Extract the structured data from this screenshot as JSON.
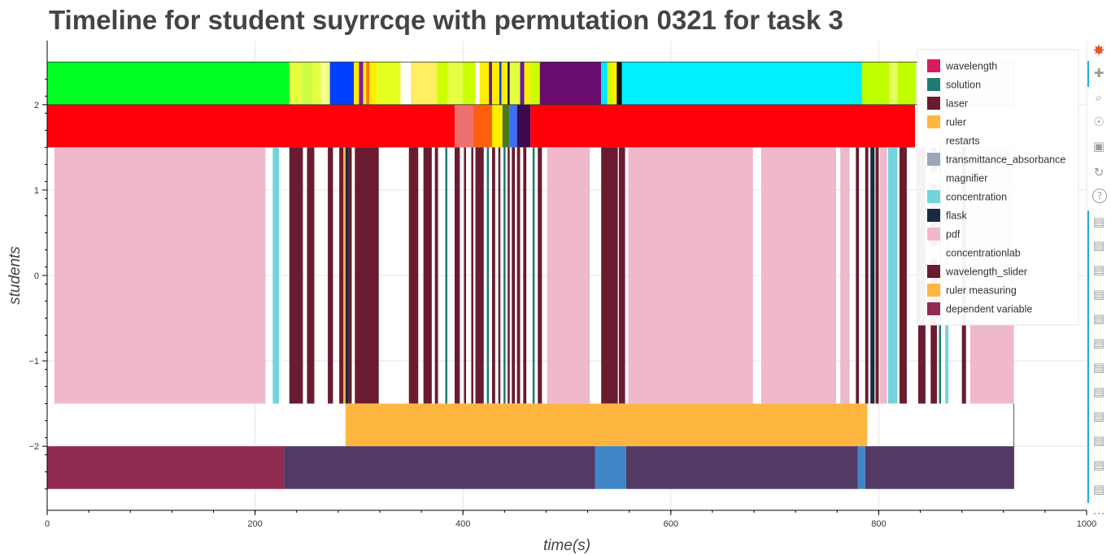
{
  "chart_data": {
    "type": "timeline",
    "title": "Timeline for student suyrrcqe with permutation 0321 for task 3",
    "xlabel": "time(s)",
    "ylabel": "students",
    "xlim": [
      0,
      1000
    ],
    "ylim": [
      -2.75,
      2.75
    ],
    "xticks": [
      0,
      200,
      400,
      600,
      800,
      1000
    ],
    "yticks": [
      -2,
      -1,
      0,
      1,
      2
    ],
    "grid": true,
    "legend_position": "top-right",
    "legend": [
      {
        "name": "wavelength",
        "color": "#d81b60"
      },
      {
        "name": "solution",
        "color": "#1f7a74"
      },
      {
        "name": "laser",
        "color": "#6a1b2f"
      },
      {
        "name": "ruler",
        "color": "#ffb641"
      },
      {
        "name": "restarts",
        "color": "#ffffff"
      },
      {
        "name": "transmittance_absorbance",
        "color": "#9aa6b8"
      },
      {
        "name": "magnifier",
        "color": "#ffffff"
      },
      {
        "name": "concentration",
        "color": "#72d4dc"
      },
      {
        "name": "flask",
        "color": "#1a2a40"
      },
      {
        "name": "pdf",
        "color": "#efb8cb"
      },
      {
        "name": "concentrationlab",
        "color": "#ffffff"
      },
      {
        "name": "wavelength_slider",
        "color": "#6a1b2f"
      },
      {
        "name": "ruler measuring",
        "color": "#ffb641"
      },
      {
        "name": "dependent variable",
        "color": "#922b52"
      }
    ],
    "rows": [
      {
        "y0": 2.0,
        "y1": 2.5,
        "segments": [
          {
            "x0": 0,
            "x1": 233,
            "color": "#00ff20"
          },
          {
            "x0": 233,
            "x1": 245,
            "color": "#e4ff40"
          },
          {
            "x0": 245,
            "x1": 255,
            "color": "#ccff44"
          },
          {
            "x0": 255,
            "x1": 263,
            "color": "#e4ff40"
          },
          {
            "x0": 263,
            "x1": 272,
            "color": "#f4ff88"
          },
          {
            "x0": 272,
            "x1": 295,
            "color": "#0040ff"
          },
          {
            "x0": 295,
            "x1": 300,
            "color": "#ffee00"
          },
          {
            "x0": 300,
            "x1": 304,
            "color": "#7b1fa2"
          },
          {
            "x0": 304,
            "x1": 307,
            "color": "#ffee00"
          },
          {
            "x0": 307,
            "x1": 310,
            "color": "#ff7700"
          },
          {
            "x0": 310,
            "x1": 317,
            "color": "#ffee00"
          },
          {
            "x0": 317,
            "x1": 340,
            "color": "#e4ff20"
          },
          {
            "x0": 340,
            "x1": 350,
            "color": "#ffffff"
          },
          {
            "x0": 350,
            "x1": 375,
            "color": "#ffee60"
          },
          {
            "x0": 375,
            "x1": 385,
            "color": "#ccff00"
          },
          {
            "x0": 385,
            "x1": 400,
            "color": "#e4ff40"
          },
          {
            "x0": 400,
            "x1": 412,
            "color": "#ccff00"
          },
          {
            "x0": 412,
            "x1": 416,
            "color": "#ffffff"
          },
          {
            "x0": 416,
            "x1": 425,
            "color": "#ffee00"
          },
          {
            "x0": 425,
            "x1": 428,
            "color": "#6a1b9a"
          },
          {
            "x0": 428,
            "x1": 435,
            "color": "#ffee00"
          },
          {
            "x0": 435,
            "x1": 437,
            "color": "#0040ff"
          },
          {
            "x0": 437,
            "x1": 443,
            "color": "#ffee00"
          },
          {
            "x0": 443,
            "x1": 445,
            "color": "#111111"
          },
          {
            "x0": 445,
            "x1": 455,
            "color": "#e4ff40"
          },
          {
            "x0": 455,
            "x1": 459,
            "color": "#6a1b9a"
          },
          {
            "x0": 459,
            "x1": 465,
            "color": "#ffee00"
          },
          {
            "x0": 465,
            "x1": 474,
            "color": "#ccff00"
          },
          {
            "x0": 474,
            "x1": 533,
            "color": "#6a0d6e"
          },
          {
            "x0": 533,
            "x1": 539,
            "color": "#00e5ff"
          },
          {
            "x0": 539,
            "x1": 543,
            "color": "#ccff00"
          },
          {
            "x0": 543,
            "x1": 548,
            "color": "#ffee00"
          },
          {
            "x0": 548,
            "x1": 553,
            "color": "#111111"
          },
          {
            "x0": 553,
            "x1": 784,
            "color": "#00f0ff"
          },
          {
            "x0": 784,
            "x1": 810,
            "color": "#c0ff00"
          },
          {
            "x0": 810,
            "x1": 818,
            "color": "#e4ff60"
          },
          {
            "x0": 818,
            "x1": 836,
            "color": "#c0ff00"
          },
          {
            "x0": 836,
            "x1": 930,
            "color": "#f4ecff"
          }
        ]
      },
      {
        "y0": 1.5,
        "y1": 2.0,
        "segments": [
          {
            "x0": 0,
            "x1": 392,
            "color": "#ff0008"
          },
          {
            "x0": 392,
            "x1": 410,
            "color": "#f07070"
          },
          {
            "x0": 410,
            "x1": 428,
            "color": "#ff6010"
          },
          {
            "x0": 428,
            "x1": 438,
            "color": "#ffee00"
          },
          {
            "x0": 438,
            "x1": 445,
            "color": "#4a7a20"
          },
          {
            "x0": 445,
            "x1": 452,
            "color": "#3b6fff"
          },
          {
            "x0": 452,
            "x1": 465,
            "color": "#3b0a50"
          },
          {
            "x0": 465,
            "x1": 835,
            "color": "#ff0008"
          },
          {
            "x0": 835,
            "x1": 930,
            "color": "#fffff2"
          }
        ]
      },
      {
        "y0": -1.5,
        "y1": 1.5,
        "segments": [
          {
            "x0": 7,
            "x1": 210,
            "color": "#efb8cb"
          },
          {
            "x0": 217,
            "x1": 223,
            "color": "#72d4dc"
          },
          {
            "x0": 233,
            "x1": 246,
            "color": "#6a1b2f"
          },
          {
            "x0": 250,
            "x1": 257,
            "color": "#6a1b2f"
          },
          {
            "x0": 270,
            "x1": 275,
            "color": "#6a1b2f"
          },
          {
            "x0": 281,
            "x1": 285,
            "color": "#6a1b2f"
          },
          {
            "x0": 285,
            "x1": 287,
            "color": "#ffb641"
          },
          {
            "x0": 287,
            "x1": 290,
            "color": "#1a2a40"
          },
          {
            "x0": 290,
            "x1": 293,
            "color": "#6a1b2f"
          },
          {
            "x0": 296,
            "x1": 319,
            "color": "#6a1b2f"
          },
          {
            "x0": 348,
            "x1": 357,
            "color": "#6a1b2f"
          },
          {
            "x0": 362,
            "x1": 370,
            "color": "#6a1b2f"
          },
          {
            "x0": 373,
            "x1": 376,
            "color": "#6a1b2f"
          },
          {
            "x0": 383,
            "x1": 385,
            "color": "#1f7a74"
          },
          {
            "x0": 392,
            "x1": 397,
            "color": "#6a1b2f"
          },
          {
            "x0": 401,
            "x1": 403,
            "color": "#6a1b2f"
          },
          {
            "x0": 408,
            "x1": 410,
            "color": "#6a1b2f"
          },
          {
            "x0": 412,
            "x1": 420,
            "color": "#6a1b2f"
          },
          {
            "x0": 423,
            "x1": 425,
            "color": "#1f7a74"
          },
          {
            "x0": 428,
            "x1": 431,
            "color": "#6a1b2f"
          },
          {
            "x0": 434,
            "x1": 436,
            "color": "#6a1b2f"
          },
          {
            "x0": 439,
            "x1": 441,
            "color": "#1f7a74"
          },
          {
            "x0": 443,
            "x1": 445,
            "color": "#6a1b2f"
          },
          {
            "x0": 447,
            "x1": 450,
            "color": "#6a1b2f"
          },
          {
            "x0": 452,
            "x1": 455,
            "color": "#6a1b2f"
          },
          {
            "x0": 458,
            "x1": 461,
            "color": "#6a1b2f"
          },
          {
            "x0": 467,
            "x1": 469,
            "color": "#1f7a74"
          },
          {
            "x0": 472,
            "x1": 476,
            "color": "#6a1b2f"
          },
          {
            "x0": 481,
            "x1": 522,
            "color": "#efb8cb"
          },
          {
            "x0": 533,
            "x1": 549,
            "color": "#6a1b2f"
          },
          {
            "x0": 550,
            "x1": 556,
            "color": "#6a1b2f"
          },
          {
            "x0": 559,
            "x1": 679,
            "color": "#efb8cb"
          },
          {
            "x0": 687,
            "x1": 759,
            "color": "#efb8cb"
          },
          {
            "x0": 763,
            "x1": 772,
            "color": "#efb8cb"
          },
          {
            "x0": 778,
            "x1": 781,
            "color": "#6a1b2f"
          },
          {
            "x0": 787,
            "x1": 790,
            "color": "#6a1b2f"
          },
          {
            "x0": 792,
            "x1": 796,
            "color": "#1a2a40"
          },
          {
            "x0": 797,
            "x1": 800,
            "color": "#6a1b2f"
          },
          {
            "x0": 801,
            "x1": 808,
            "color": "#efb8cb"
          },
          {
            "x0": 809,
            "x1": 818,
            "color": "#72d4dc"
          },
          {
            "x0": 820,
            "x1": 827,
            "color": "#6a1b2f"
          },
          {
            "x0": 838,
            "x1": 845,
            "color": "#6a1b2f"
          },
          {
            "x0": 850,
            "x1": 856,
            "color": "#6a1b2f"
          },
          {
            "x0": 858,
            "x1": 860,
            "color": "#1f7a74"
          },
          {
            "x0": 864,
            "x1": 867,
            "color": "#72d4dc"
          },
          {
            "x0": 880,
            "x1": 884,
            "color": "#6a1b2f"
          },
          {
            "x0": 888,
            "x1": 930,
            "color": "#efb8cb"
          }
        ]
      },
      {
        "y0": -2.0,
        "y1": -1.5,
        "segments": [
          {
            "x0": 287,
            "x1": 789,
            "color": "#ffb641"
          }
        ]
      },
      {
        "y0": -2.5,
        "y1": -2.0,
        "segments": [
          {
            "x0": 0,
            "x1": 228,
            "color": "#922b52"
          },
          {
            "x0": 228,
            "x1": 527,
            "color": "#523a64"
          },
          {
            "x0": 527,
            "x1": 557,
            "color": "#3f86c8"
          },
          {
            "x0": 557,
            "x1": 780,
            "color": "#523a64"
          },
          {
            "x0": 780,
            "x1": 787,
            "color": "#3f86c8"
          },
          {
            "x0": 787,
            "x1": 930,
            "color": "#523a64"
          }
        ]
      }
    ]
  },
  "toolbar": {
    "icons": [
      "bokeh-logo-icon",
      "pan-icon",
      "box-zoom-icon",
      "wheel-zoom-icon",
      "save-icon",
      "reset-icon",
      "help-icon",
      "hover-icon",
      "hover-icon",
      "hover-icon",
      "hover-icon",
      "hover-icon",
      "hover-icon",
      "hover-icon",
      "hover-icon",
      "hover-icon",
      "hover-icon",
      "hover-icon",
      "hover-icon",
      "more-icon"
    ]
  }
}
